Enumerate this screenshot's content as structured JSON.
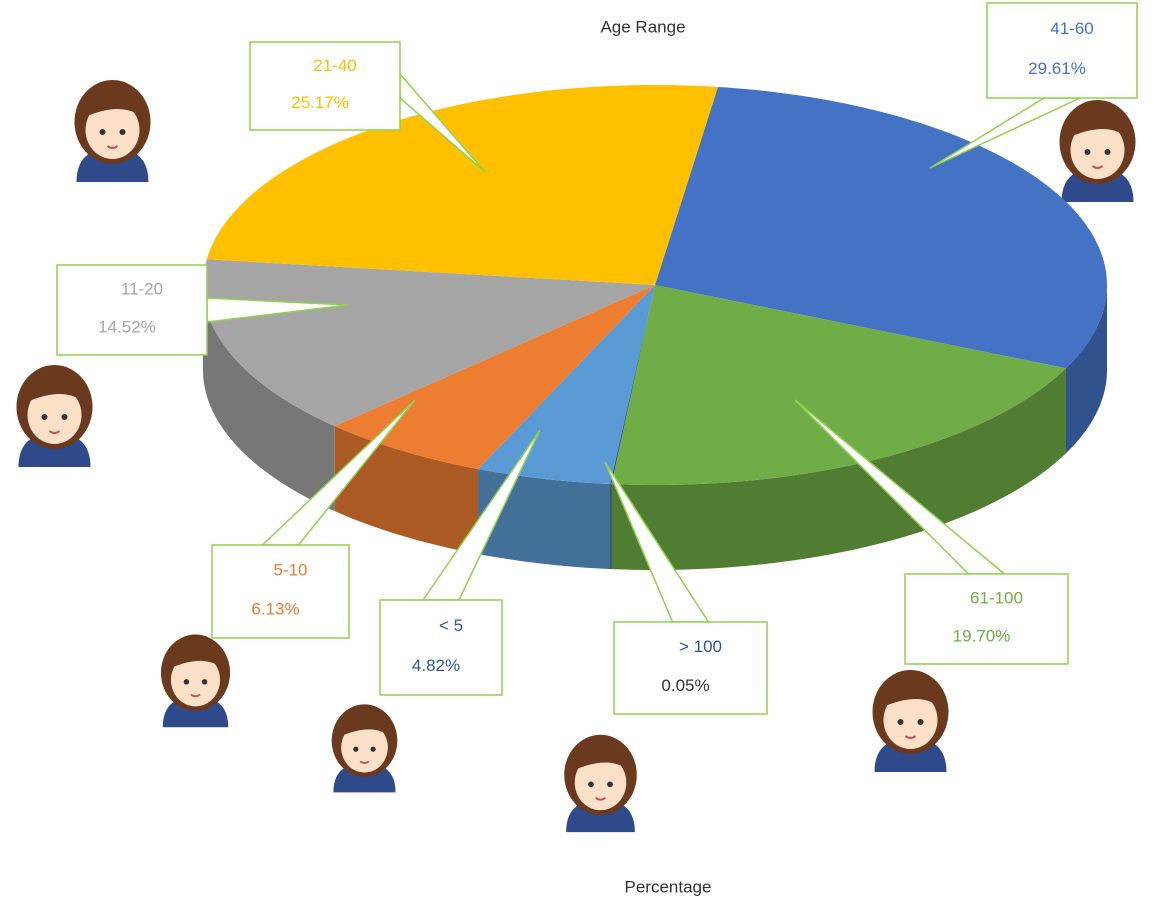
{
  "chart_data": {
    "type": "pie",
    "title": "Age Range",
    "xlabel": "Percentage",
    "categories": [
      "41-60",
      "61-100",
      "> 100",
      "< 5",
      "5-10",
      "11-20",
      "21-40"
    ],
    "values": [
      29.61,
      19.7,
      0.05,
      4.82,
      6.13,
      14.52,
      25.17
    ],
    "value_labels": [
      "29.61%",
      "19.70%",
      "0.05%",
      "4.82%",
      "6.13%",
      "14.52%",
      "25.17%"
    ],
    "colors": [
      "#4472c4",
      "#70ad47",
      "#2f5597",
      "#5b9bd5",
      "#ed7d31",
      "#a5a5a5",
      "#ffc000"
    ]
  }
}
